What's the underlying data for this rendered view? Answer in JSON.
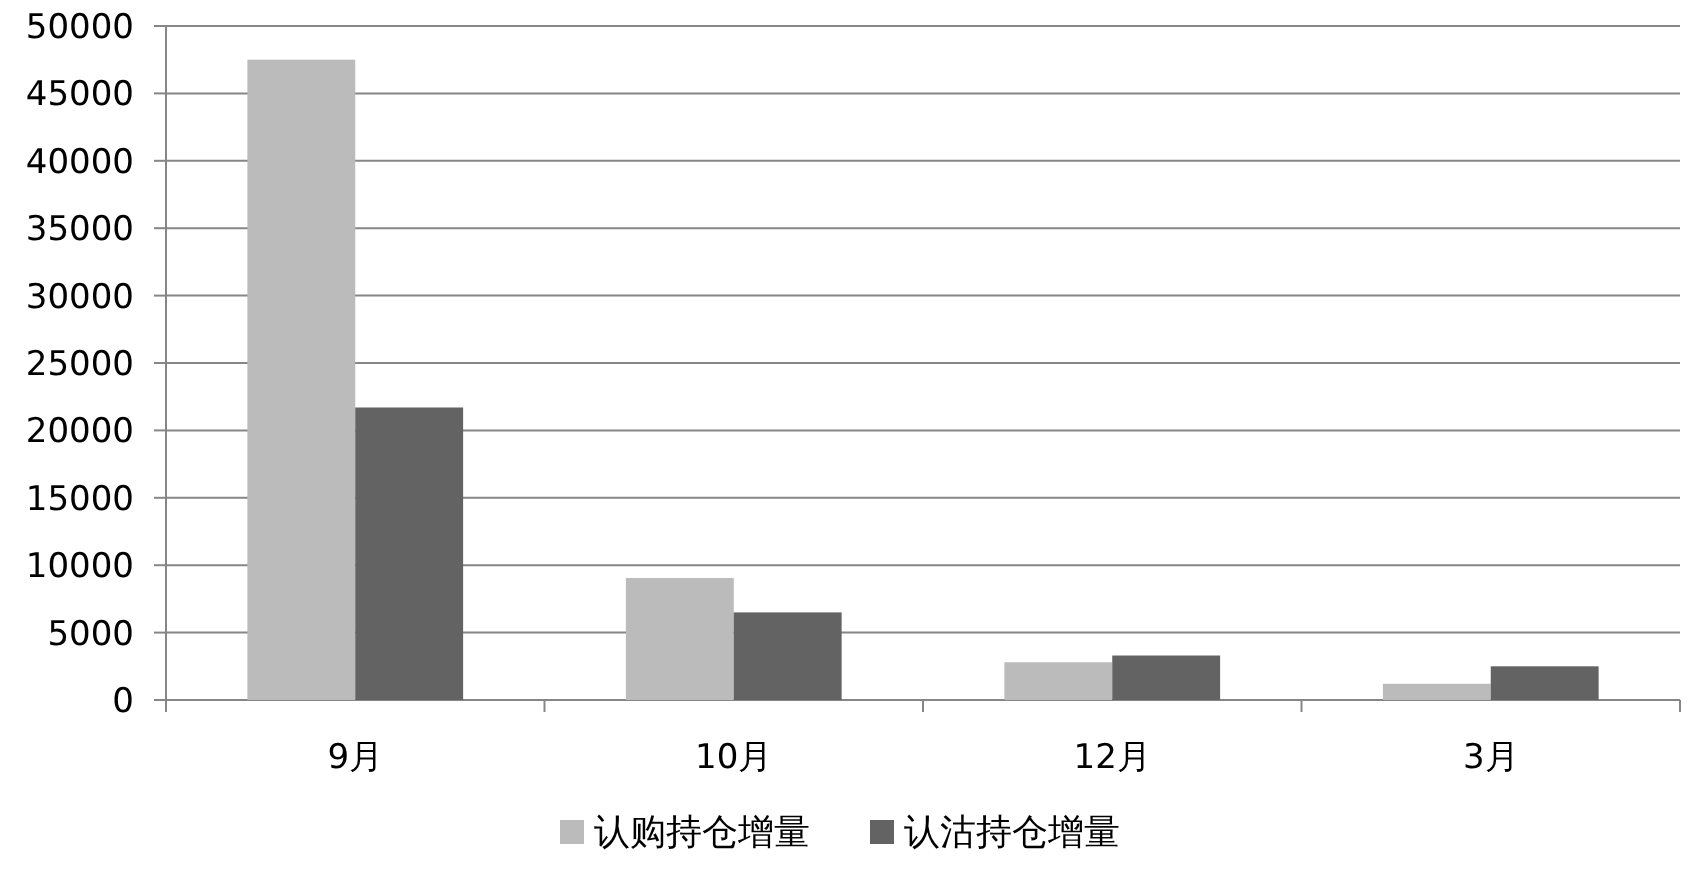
{
  "chart_data": {
    "type": "bar",
    "categories": [
      "9月",
      "10月",
      "12月",
      "3月"
    ],
    "series": [
      {
        "name": "认购持仓增量",
        "color": "#bbbbbb",
        "values": [
          47500,
          9050,
          2800,
          1200
        ]
      },
      {
        "name": "认沽持仓增量",
        "color": "#636363",
        "values": [
          21700,
          6500,
          3300,
          2500
        ]
      }
    ],
    "ylim": [
      0,
      50000
    ],
    "yticks": [
      0,
      5000,
      10000,
      15000,
      20000,
      25000,
      30000,
      35000,
      40000,
      45000,
      50000
    ],
    "grid": "y",
    "legend": "bottom"
  }
}
